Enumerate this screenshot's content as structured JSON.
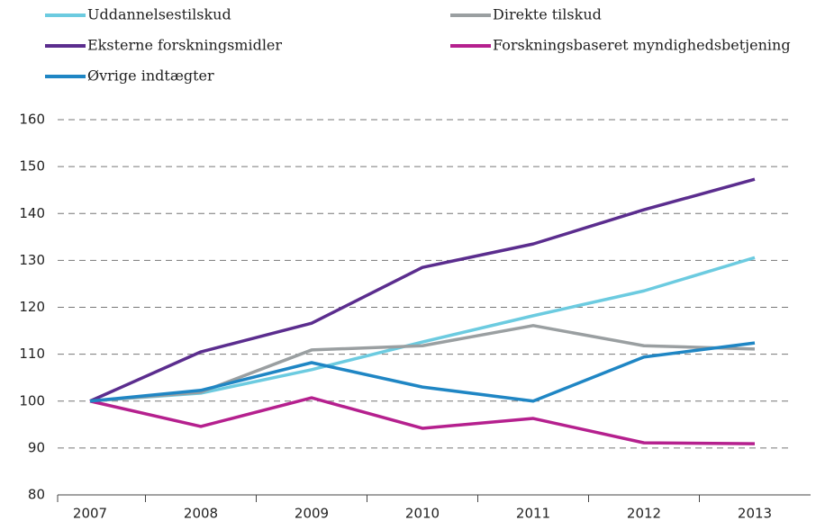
{
  "chart_data": {
    "type": "line",
    "categories": [
      "2007",
      "2008",
      "2009",
      "2010",
      "2011",
      "2012",
      "2013"
    ],
    "series": [
      {
        "name": "Uddannelsestilskud",
        "color": "#6ccbe0",
        "values": [
          100,
          101.7,
          106.7,
          112.6,
          118.2,
          123.5,
          130.6
        ]
      },
      {
        "name": "Direkte tilskud",
        "color": "#9a9fa1",
        "values": [
          100,
          101.9,
          110.9,
          111.8,
          116.1,
          111.8,
          111.1
        ]
      },
      {
        "name": "Eksterne forskningsmidler",
        "color": "#5b2d8e",
        "values": [
          100,
          110.5,
          116.6,
          128.5,
          133.5,
          140.8,
          147.3
        ]
      },
      {
        "name": "Forskningsbaseret myndighedsbetjening",
        "color": "#b5208e",
        "values": [
          100,
          94.6,
          100.7,
          94.2,
          96.3,
          91.1,
          90.9
        ]
      },
      {
        "name": "Øvrige indtægter",
        "color": "#1f86c4",
        "values": [
          100,
          102.3,
          108.2,
          103,
          100,
          109.4,
          112.4
        ]
      }
    ],
    "ylim": [
      80,
      160
    ],
    "yticks": [
      80,
      90,
      100,
      110,
      120,
      130,
      140,
      150,
      160
    ],
    "grid": true
  }
}
